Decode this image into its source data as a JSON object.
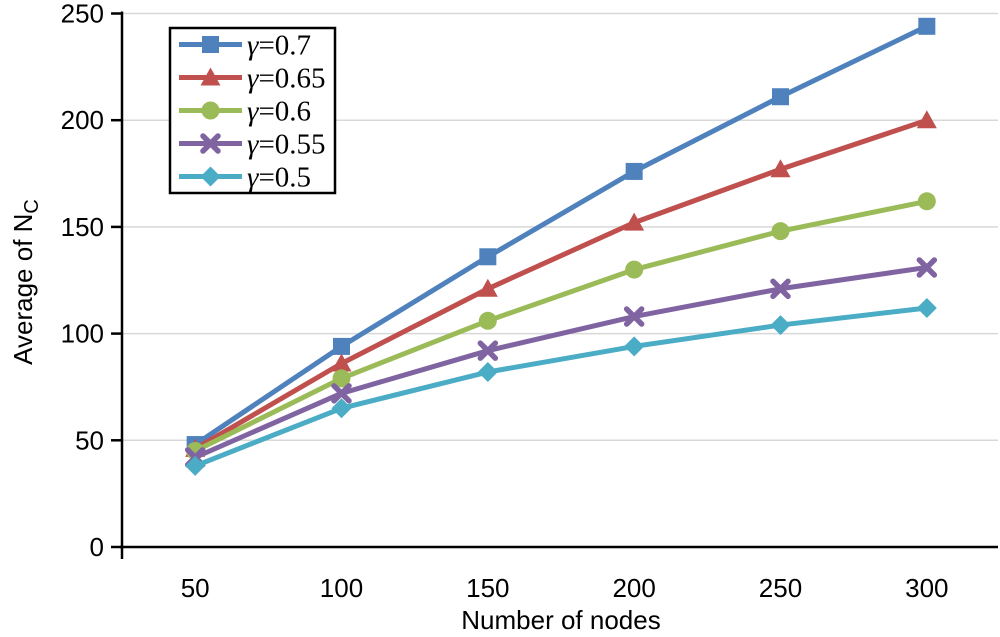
{
  "chart_data": {
    "type": "line",
    "title": "",
    "xlabel": "Number of nodes",
    "ylabel": "Average of N_C",
    "ylabel_main": "Average of N",
    "ylabel_sub": "C",
    "x_categories": [
      50,
      100,
      150,
      200,
      250,
      300
    ],
    "y_ticks": [
      0,
      50,
      100,
      150,
      200,
      250
    ],
    "ylim": [
      0,
      250
    ],
    "grid": "horizontal",
    "legend_position": "top-left-inside",
    "series": [
      {
        "name": "γ=0.7",
        "marker": "square",
        "color": "#4F81BD",
        "values": [
          48,
          94,
          136,
          176,
          211,
          244
        ]
      },
      {
        "name": "γ=0.65",
        "marker": "triangle",
        "color": "#C0504D",
        "values": [
          46,
          86,
          121,
          152,
          177,
          200
        ]
      },
      {
        "name": "γ=0.6",
        "marker": "circle",
        "color": "#9BBB59",
        "values": [
          45,
          79,
          106,
          130,
          148,
          162
        ]
      },
      {
        "name": "γ=0.55",
        "marker": "x",
        "color": "#8064A2",
        "values": [
          42,
          72,
          92,
          108,
          121,
          131
        ]
      },
      {
        "name": "γ=0.5",
        "marker": "diamond",
        "color": "#4BACC6",
        "values": [
          38,
          65,
          82,
          94,
          104,
          112
        ]
      }
    ],
    "colors": {
      "axis": "#000000",
      "gridline": "#D8D8D8",
      "background": "#FFFFFF",
      "legend_border": "#000000",
      "legend_fill": "#FFFFFF"
    }
  }
}
